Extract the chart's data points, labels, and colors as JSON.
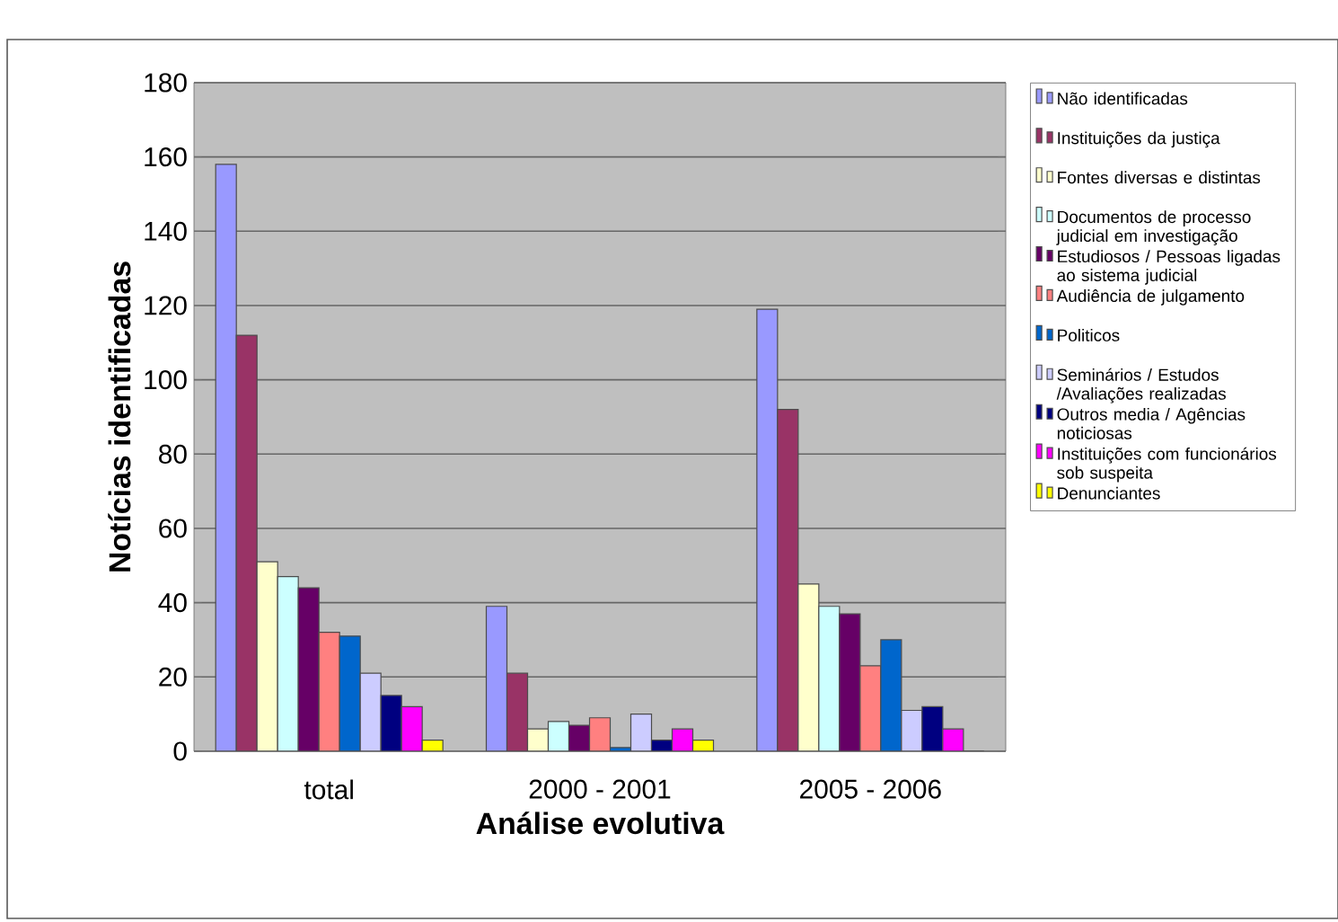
{
  "chart_data": {
    "type": "bar",
    "xlabel": "Análise evolutiva",
    "ylabel": "Notícias identificadas",
    "categories": [
      "total",
      "2000 - 2001",
      "2005 - 2006"
    ],
    "series": [
      {
        "name": "Não identificadas",
        "color": "#9999ff",
        "values": [
          158,
          39,
          119
        ]
      },
      {
        "name": "Instituições da justiça",
        "color": "#993366",
        "values": [
          112,
          21,
          92
        ]
      },
      {
        "name": "Fontes diversas e distintas",
        "color": "#ffffcc",
        "values": [
          51,
          6,
          45
        ]
      },
      {
        "name": "Documentos de processo judicial em investigação",
        "color": "#ccffff",
        "values": [
          47,
          8,
          39
        ]
      },
      {
        "name": "Estudiosos / Pessoas ligadas ao sistema judicial",
        "color": "#660066",
        "values": [
          44,
          7,
          37
        ]
      },
      {
        "name": "Audiência de julgamento",
        "color": "#ff8080",
        "values": [
          32,
          9,
          23
        ]
      },
      {
        "name": "Politicos",
        "color": "#0066cc",
        "values": [
          31,
          1,
          30
        ]
      },
      {
        "name": "Seminários / Estudos /Avaliações realizadas",
        "color": "#ccccff",
        "values": [
          21,
          10,
          11
        ]
      },
      {
        "name": "Outros media / Agências noticiosas",
        "color": "#000080",
        "values": [
          15,
          3,
          12
        ]
      },
      {
        "name": "Instituições com funcionários sob suspeita",
        "color": "#ff00ff",
        "values": [
          12,
          6,
          6
        ]
      },
      {
        "name": "Denunciantes",
        "color": "#ffff00",
        "values": [
          3,
          3,
          0
        ]
      }
    ],
    "ylim": [
      0,
      180
    ],
    "yticks": [
      0,
      20,
      40,
      60,
      80,
      100,
      120,
      140,
      160,
      180
    ],
    "grid": "y",
    "legend": "right"
  }
}
